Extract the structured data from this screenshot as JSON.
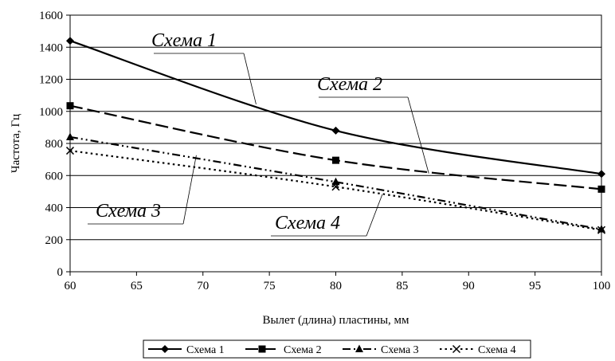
{
  "chart_data": {
    "type": "line",
    "title": "",
    "xlabel": "Вылет (длина) пластины, мм",
    "ylabel": "Частота, Гц",
    "xlim": [
      60,
      100
    ],
    "ylim": [
      0,
      1600
    ],
    "xticks": [
      60,
      65,
      70,
      75,
      80,
      85,
      90,
      95,
      100
    ],
    "yticks": [
      0,
      200,
      400,
      600,
      800,
      1000,
      1200,
      1400,
      1600
    ],
    "grid": "horizontal",
    "legend_position": "bottom",
    "x": [
      60,
      80,
      100
    ],
    "series": [
      {
        "name": "Схема 1",
        "values": [
          1440,
          880,
          610
        ],
        "marker": "diamond",
        "dash": "solid"
      },
      {
        "name": "Схема 2",
        "values": [
          1035,
          695,
          515
        ],
        "marker": "square",
        "dash": "long-dash"
      },
      {
        "name": "Схема 3",
        "values": [
          840,
          560,
          265
        ],
        "marker": "triangle",
        "dash": "long-dash-dot-dot"
      },
      {
        "name": "Схема 4",
        "values": [
          755,
          530,
          260
        ],
        "marker": "x",
        "dash": "dotted"
      }
    ],
    "annotations": [
      {
        "text": "Схема 1",
        "series": 0,
        "target_x": 74
      },
      {
        "text": "Схема 2",
        "series": 1,
        "target_x": 87
      },
      {
        "text": "Схема 3",
        "series": 2,
        "target_x": 69.5
      },
      {
        "text": "Схема 4",
        "series": 3,
        "target_x": 83.5
      }
    ]
  }
}
